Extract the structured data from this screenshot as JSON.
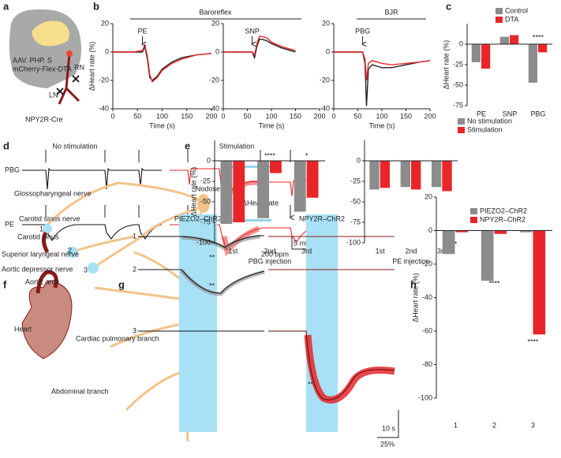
{
  "panels": {
    "labels": [
      "a",
      "b",
      "c",
      "d",
      "e",
      "f",
      "g",
      "h"
    ],
    "a": {
      "virus": "AAV. PHP. S",
      "construct": "mCherry-Flex-DTA",
      "rn": "RN",
      "ln": "LN",
      "mouse": "NPY2R-Cre"
    },
    "b": {
      "group1": "Baroreflex",
      "group2": "BJR"
    },
    "d": {
      "col1": "No stimulation",
      "col2": "Stimulation",
      "row1": "PBG",
      "row2": "PE",
      "scale_x": "5 min",
      "scale_y": "200 bpm"
    },
    "f": {
      "nerves": [
        "Glossopharyngeal nerve",
        "Nodose",
        "Carotid sinus nerve",
        "Carotid sinus",
        "Superior laryngeal nerve",
        "Aortic depressor nerve",
        "Aortic arch",
        "Heart",
        "Cardiac pulmonary branch",
        "Abdominal branch"
      ],
      "sites": [
        "1",
        "2",
        "3"
      ]
    },
    "g": {
      "title": "ΔHeart rate",
      "col1": "PIEZO2–ChR2",
      "col2": "NPY2R–ChR2",
      "rows": [
        "1",
        "2",
        "3"
      ],
      "stars": [
        "**",
        "**",
        "**"
      ],
      "scale_x": "10 s",
      "scale_y": "25%"
    }
  },
  "chart_data": [
    {
      "type": "line",
      "x_label": "Time (s)",
      "y_label": "ΔHeart rate (%)",
      "annotation": "PE",
      "x": [
        0,
        20,
        40,
        60,
        65,
        70,
        75,
        80,
        90,
        100,
        120,
        140,
        170,
        200
      ],
      "series": [
        {
          "color": "#222222",
          "values": [
            0,
            0,
            0,
            0,
            4,
            -5,
            -18,
            -20,
            -17,
            -12,
            -7,
            -4,
            -2,
            -1
          ]
        },
        {
          "color": "#e8262a",
          "values": [
            0,
            0,
            0,
            1,
            5,
            -3,
            -16,
            -21,
            -18,
            -13,
            -8,
            -5,
            -2,
            -1
          ]
        }
      ],
      "xlim": [
        0,
        200
      ],
      "xticks": [
        0,
        50,
        100,
        150,
        200
      ],
      "ylim": [
        -40,
        20
      ],
      "yticks": [
        -40,
        -20,
        0,
        20
      ]
    },
    {
      "type": "line",
      "x_label": "Time (s)",
      "annotation": "SNP",
      "x": [
        0,
        20,
        40,
        60,
        65,
        70,
        75,
        80,
        90,
        100,
        120,
        140,
        150
      ],
      "series": [
        {
          "color": "#222222",
          "values": [
            0,
            0,
            0,
            0,
            -4,
            4,
            9,
            9,
            8,
            6,
            3,
            1,
            0
          ]
        },
        {
          "color": "#e8262a",
          "values": [
            0,
            0,
            0,
            0,
            -2,
            6,
            11,
            11,
            10,
            7,
            4,
            2,
            1
          ]
        }
      ],
      "xlim": [
        0,
        200
      ],
      "xticks": [
        0,
        50,
        100,
        150,
        200
      ],
      "ylim": [
        -40,
        20
      ],
      "yticks": [
        -40,
        -20,
        0,
        20
      ]
    },
    {
      "type": "line",
      "x_label": "Time (s)",
      "annotation": "PBG",
      "x": [
        0,
        20,
        40,
        60,
        65,
        68,
        72,
        80,
        90,
        100,
        120,
        150,
        180,
        200
      ],
      "series": [
        {
          "color": "#222222",
          "values": [
            0,
            0,
            0,
            0,
            -8,
            -38,
            -12,
            -9,
            -10,
            -11,
            -11,
            -9,
            -7,
            -6
          ]
        },
        {
          "color": "#e8262a",
          "values": [
            0,
            0,
            0,
            0,
            -5,
            -20,
            -8,
            -6,
            -7,
            -8,
            -9,
            -8,
            -7,
            -6
          ]
        }
      ],
      "xlim": [
        0,
        200
      ],
      "xticks": [
        0,
        50,
        100,
        150,
        200
      ],
      "ylim": [
        -40,
        20
      ],
      "yticks": [
        -40,
        -20,
        0,
        20
      ]
    },
    {
      "type": "bar",
      "y_label": "ΔHeart rate (%)",
      "categories": [
        "PE",
        "SNP",
        "PBG"
      ],
      "series": [
        {
          "name": "Control",
          "color": "#8c8c8c",
          "values": [
            -22,
            9,
            -47
          ]
        },
        {
          "name": "DTA",
          "color": "#e8262a",
          "values": [
            -30,
            11,
            -10
          ]
        }
      ],
      "annotations": [
        "****"
      ],
      "ylim": [
        -75,
        25
      ],
      "yticks": [
        -75,
        -50,
        -25,
        0
      ]
    },
    {
      "type": "bar",
      "y_label": "ΔHeart rate (%)",
      "x_label": "PBG injection",
      "categories": [
        "1st",
        "2nd",
        "3rd"
      ],
      "series": [
        {
          "color": "#8c8c8c",
          "values": [
            -77,
            -70,
            -62
          ]
        },
        {
          "color": "#e8262a",
          "values": [
            -75,
            -15,
            -45
          ]
        }
      ],
      "annotations": [
        "****",
        "*"
      ],
      "ylim": [
        -100,
        25
      ],
      "yticks": [
        -100,
        -75,
        -50,
        -25,
        0
      ]
    },
    {
      "type": "bar",
      "x_label": "PE injection",
      "categories": [
        "1st",
        "2nd",
        "3rd"
      ],
      "series": [
        {
          "name": "No stimulation",
          "color": "#8c8c8c",
          "values": [
            -35,
            -32,
            -32
          ]
        },
        {
          "name": "Stimulation",
          "color": "#e8262a",
          "values": [
            -33,
            -35,
            -37
          ]
        }
      ],
      "ylim": [
        -100,
        25
      ],
      "yticks": [
        -100,
        -75,
        -50,
        -25,
        0
      ]
    },
    {
      "type": "bar",
      "y_label": "ΔHeart rate (%)",
      "categories": [
        "1",
        "2",
        "3"
      ],
      "series": [
        {
          "name": "PIEZO2–ChR2",
          "color": "#8c8c8c",
          "values": [
            -14,
            -30,
            -1
          ]
        },
        {
          "name": "NPY2R–ChR2",
          "color": "#e8262a",
          "values": [
            -1,
            -2,
            -62
          ]
        }
      ],
      "annotations": [
        "*",
        "****",
        "****"
      ],
      "ylim": [
        -100,
        20
      ],
      "yticks": [
        -100,
        -80,
        -60,
        -40,
        -20,
        0,
        20
      ]
    }
  ]
}
